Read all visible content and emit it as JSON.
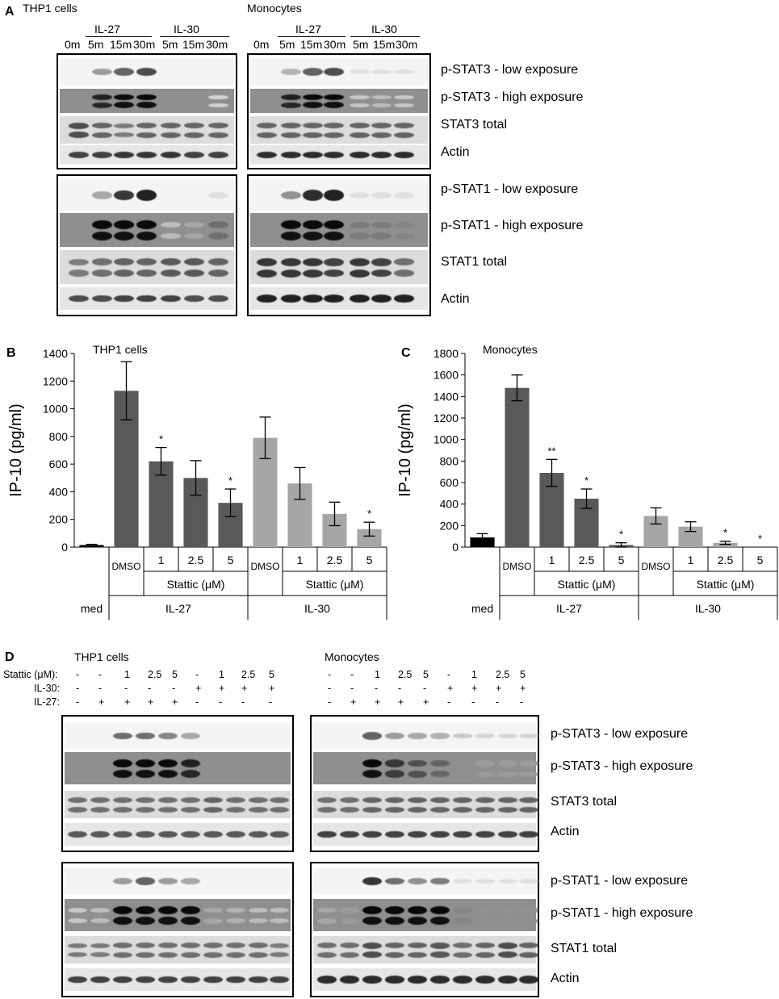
{
  "panel_a": {
    "letter": "A",
    "left": {
      "title": "THP1 cells",
      "groups": [
        "IL-27",
        "IL-30"
      ],
      "lanes": [
        "0m",
        "5m",
        "15m",
        "30m",
        "5m",
        "15m",
        "30m"
      ],
      "blots": [
        [
          [
            0,
            0.35,
            0.6,
            0.7,
            0,
            0,
            0
          ],
          [
            0,
            0.9,
            1,
            1,
            0,
            0,
            0.1
          ],
          [
            0.7,
            0.6,
            0.5,
            0.6,
            0.6,
            0.6,
            0.6
          ],
          [
            0.75,
            0.75,
            0.8,
            0.8,
            0.8,
            0.75,
            0.75
          ]
        ],
        [
          [
            0,
            0.3,
            0.8,
            0.9,
            0,
            0,
            0.05
          ],
          [
            0,
            1,
            1,
            1,
            0.2,
            0.3,
            0.55
          ],
          [
            0.5,
            0.55,
            0.6,
            0.6,
            0.65,
            0.65,
            0.6
          ],
          [
            0.7,
            0.7,
            0.75,
            0.75,
            0.75,
            0.7,
            0.7
          ]
        ]
      ]
    },
    "right": {
      "title": "Monocytes",
      "groups": [
        "IL-27",
        "IL-30"
      ],
      "lanes": [
        "0m",
        "5m",
        "15m",
        "30m",
        "5m",
        "15m",
        "30m"
      ],
      "blots": [
        [
          [
            0,
            0.25,
            0.6,
            0.7,
            0.05,
            0.05,
            0.05
          ],
          [
            0,
            0.9,
            1,
            1,
            0.15,
            0.2,
            0.15
          ],
          [
            0.6,
            0.6,
            0.6,
            0.6,
            0.6,
            0.6,
            0.6
          ],
          [
            0.85,
            0.85,
            0.85,
            0.85,
            0.85,
            0.85,
            0.85
          ]
        ],
        [
          [
            0,
            0.4,
            0.85,
            0.9,
            0.05,
            0.05,
            0.05
          ],
          [
            0,
            1,
            1,
            1,
            0.5,
            0.5,
            0.45
          ],
          [
            0.8,
            0.8,
            0.8,
            0.75,
            0.8,
            0.75,
            0.55
          ],
          [
            0.9,
            0.9,
            0.9,
            0.9,
            0.9,
            0.9,
            0.9
          ]
        ]
      ]
    },
    "labels": [
      [
        "p-STAT3 - low exposure",
        "p-STAT3 - high exposure",
        "STAT3 total",
        "Actin"
      ],
      [
        "p-STAT1 - low exposure",
        "p-STAT1 - high exposure",
        "STAT1 total",
        "Actin"
      ]
    ]
  },
  "chart_data": [
    {
      "type": "bar",
      "panel": "B",
      "title": "THP1 cells",
      "ylabel": "IP-10 (pg/ml)",
      "ylim": [
        0,
        1400
      ],
      "yticks": [
        0,
        200,
        400,
        600,
        800,
        1000,
        1200,
        1400
      ],
      "values": [
        15,
        1130,
        620,
        500,
        320,
        790,
        460,
        240,
        130
      ],
      "errors": [
        5,
        210,
        100,
        125,
        100,
        150,
        115,
        85,
        50
      ],
      "significance": [
        "",
        "",
        "*",
        "",
        "*",
        "",
        "",
        "",
        "*"
      ],
      "bar_colors": [
        "#000000",
        "#595959",
        "#595959",
        "#595959",
        "#595959",
        "#a6a6a6",
        "#a6a6a6",
        "#a6a6a6",
        "#a6a6a6"
      ],
      "dose_labels": [
        "1",
        "2.5",
        "5",
        "1",
        "2.5",
        "5"
      ],
      "dmso_label": "DMSO",
      "treatment_label": "Stattic (μM)",
      "med_label": "med",
      "groups": [
        "IL-27",
        "IL-30"
      ]
    },
    {
      "type": "bar",
      "panel": "C",
      "title": "Monocytes",
      "ylabel": "IP-10 (pg/ml)",
      "ylim": [
        0,
        1800
      ],
      "yticks": [
        0,
        200,
        400,
        600,
        800,
        1000,
        1200,
        1400,
        1600,
        1800
      ],
      "values": [
        90,
        1480,
        690,
        450,
        20,
        290,
        190,
        40,
        0
      ],
      "errors": [
        35,
        120,
        125,
        90,
        20,
        75,
        45,
        15,
        0
      ],
      "significance": [
        "",
        "",
        "**",
        "*",
        "*",
        "",
        "",
        "*",
        "*"
      ],
      "bar_colors": [
        "#000000",
        "#595959",
        "#595959",
        "#595959",
        "#595959",
        "#a6a6a6",
        "#a6a6a6",
        "#a6a6a6",
        "#a6a6a6"
      ],
      "dose_labels": [
        "1",
        "2.5",
        "5",
        "1",
        "2.5",
        "5"
      ],
      "dmso_label": "DMSO",
      "treatment_label": "Stattic (μM)",
      "med_label": "med",
      "groups": [
        "IL-27",
        "IL-30"
      ]
    }
  ],
  "panel_d": {
    "letter": "D",
    "left": {
      "title": "THP1 cells",
      "blots": [
        [
          [
            0,
            0,
            0.55,
            0.55,
            0.45,
            0.3,
            0,
            0,
            0,
            0
          ],
          [
            0,
            0,
            1,
            1,
            1,
            0.9,
            0,
            0,
            0,
            0
          ],
          [
            0.55,
            0.55,
            0.55,
            0.55,
            0.55,
            0.55,
            0.6,
            0.55,
            0.55,
            0.55
          ],
          [
            0.65,
            0.65,
            0.65,
            0.65,
            0.65,
            0.65,
            0.65,
            0.65,
            0.65,
            0.65
          ]
        ],
        [
          [
            0,
            0,
            0.35,
            0.6,
            0.35,
            0.3,
            0,
            0,
            0,
            0
          ],
          [
            0.15,
            0.2,
            1,
            1,
            1,
            1,
            0.3,
            0.25,
            0.2,
            0.2
          ],
          [
            0.5,
            0.5,
            0.55,
            0.55,
            0.55,
            0.55,
            0.55,
            0.55,
            0.55,
            0.5
          ],
          [
            0.75,
            0.75,
            0.75,
            0.75,
            0.75,
            0.75,
            0.75,
            0.75,
            0.75,
            0.75
          ]
        ]
      ]
    },
    "right": {
      "title": "Monocytes",
      "blots": [
        [
          [
            0,
            0,
            0.6,
            0.35,
            0.3,
            0.25,
            0.15,
            0.1,
            0.1,
            0.1
          ],
          [
            0,
            0,
            1,
            0.8,
            0.7,
            0.6,
            0.4,
            0.35,
            0.35,
            0.35
          ],
          [
            0.55,
            0.55,
            0.6,
            0.6,
            0.6,
            0.6,
            0.6,
            0.6,
            0.6,
            0.6
          ],
          [
            0.75,
            0.75,
            0.75,
            0.75,
            0.75,
            0.75,
            0.75,
            0.75,
            0.75,
            0.75
          ]
        ],
        [
          [
            0,
            0,
            0.8,
            0.55,
            0.4,
            0.5,
            0.05,
            0.05,
            0.05,
            0.05
          ],
          [
            0.3,
            0.35,
            1,
            1,
            1,
            1,
            0.45,
            0.4,
            0.4,
            0.4
          ],
          [
            0.55,
            0.55,
            0.7,
            0.6,
            0.6,
            0.65,
            0.55,
            0.6,
            0.7,
            0.6
          ],
          [
            0.85,
            0.85,
            0.85,
            0.85,
            0.85,
            0.85,
            0.85,
            0.85,
            0.85,
            0.85
          ]
        ]
      ]
    },
    "row_labels": [
      "Stattic (μM):",
      "IL-30:",
      "IL-27:"
    ],
    "rows": [
      [
        "-",
        "-",
        "1",
        "2.5",
        "5",
        "-",
        "1",
        "2.5",
        "5",
        ""
      ],
      [
        "-",
        "-",
        "-",
        "-",
        "-",
        "+",
        "+",
        "+",
        "+",
        ""
      ],
      [
        "-",
        "+",
        "+",
        "+",
        "+",
        "-",
        "-",
        "-",
        "-",
        ""
      ]
    ],
    "labels": [
      [
        "p-STAT3 - low exposure",
        "p-STAT3 - high exposure",
        "STAT3 total",
        "Actin"
      ],
      [
        "p-STAT1 - low exposure",
        "p-STAT1 - high exposure",
        "STAT1 total",
        "Actin"
      ]
    ]
  }
}
